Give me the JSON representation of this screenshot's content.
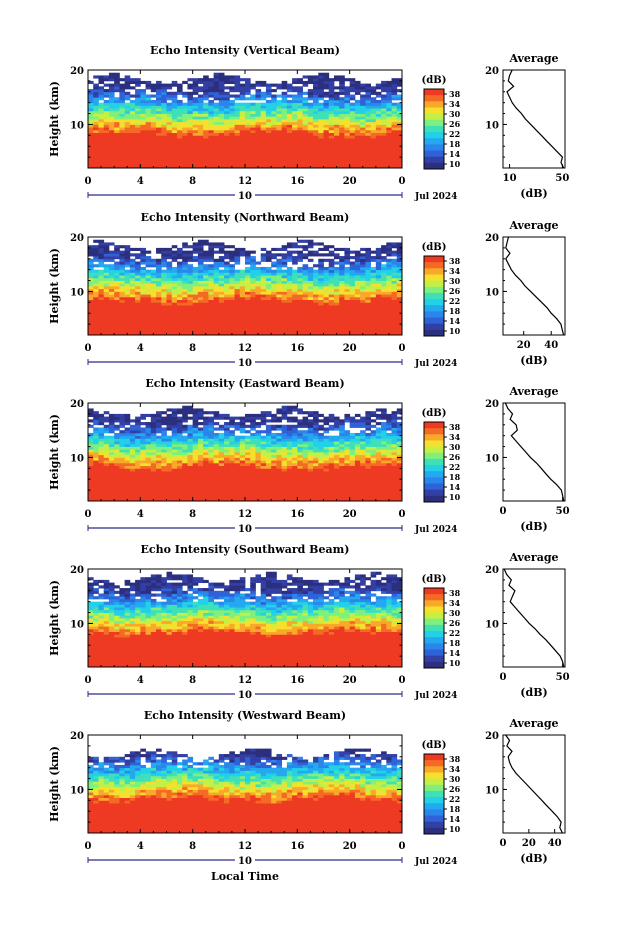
{
  "colors": {
    "cmap": [
      "#2b2f7e",
      "#323fa5",
      "#2f62d6",
      "#2a86ea",
      "#22a9f0",
      "#22d0e8",
      "#3fe0b8",
      "#7df07e",
      "#c4f046",
      "#f6e02e",
      "#f9a82a",
      "#f46a24",
      "#ee3a22"
    ],
    "rain": "#f0301f"
  },
  "chart_data": [
    {
      "type": "heatmap",
      "title": "Echo Intensity (Vertical Beam)",
      "ylabel": "Height (km)",
      "ylim": [
        2,
        20
      ],
      "yticks": [
        "20",
        "10"
      ],
      "xlim": [
        0,
        24
      ],
      "xticks": [
        "0",
        "4",
        "8",
        "12",
        "16",
        "20",
        "0"
      ],
      "date_mid": "10",
      "date_label": "Jul 2024",
      "colorbar": {
        "unit": "(dB)",
        "ticks": [
          "38",
          "34",
          "30",
          "26",
          "22",
          "18",
          "14",
          "10"
        ],
        "range": [
          10,
          38
        ]
      },
      "profile": {
        "title": "Average",
        "xlabel": "(dB)",
        "xticks": [
          "10",
          "50"
        ],
        "xlim": [
          5,
          52
        ],
        "points": [
          [
            12,
            20
          ],
          [
            10,
            19
          ],
          [
            9,
            18
          ],
          [
            13,
            17
          ],
          [
            8,
            16
          ],
          [
            10,
            15
          ],
          [
            12,
            14
          ],
          [
            15,
            13
          ],
          [
            19,
            12
          ],
          [
            22,
            11
          ],
          [
            26,
            10
          ],
          [
            30,
            9
          ],
          [
            34,
            8
          ],
          [
            38,
            7
          ],
          [
            42,
            6
          ],
          [
            46,
            5
          ],
          [
            50,
            4
          ],
          [
            49,
            3
          ],
          [
            51,
            2
          ]
        ]
      }
    },
    {
      "type": "heatmap",
      "title": "Echo Intensity (Northward Beam)",
      "ylabel": "Height (km)",
      "ylim": [
        2,
        20
      ],
      "yticks": [
        "20",
        "10"
      ],
      "xlim": [
        0,
        24
      ],
      "xticks": [
        "0",
        "4",
        "8",
        "12",
        "16",
        "20",
        "0"
      ],
      "date_mid": "10",
      "date_label": "Jul 2024",
      "colorbar": {
        "unit": "(dB)",
        "ticks": [
          "38",
          "34",
          "30",
          "26",
          "22",
          "18",
          "14",
          "10"
        ],
        "range": [
          10,
          38
        ]
      },
      "profile": {
        "title": "Average",
        "xlabel": "(dB)",
        "xticks": [
          "20",
          "40"
        ],
        "xlim": [
          5,
          50
        ],
        "points": [
          [
            9,
            20
          ],
          [
            8,
            19
          ],
          [
            7,
            18
          ],
          [
            10,
            17
          ],
          [
            7,
            16
          ],
          [
            9,
            15
          ],
          [
            11,
            14
          ],
          [
            14,
            13
          ],
          [
            18,
            12
          ],
          [
            21,
            11
          ],
          [
            25,
            10
          ],
          [
            29,
            9
          ],
          [
            33,
            8
          ],
          [
            37,
            7
          ],
          [
            40,
            6
          ],
          [
            44,
            5
          ],
          [
            47,
            4
          ],
          [
            48,
            3
          ],
          [
            49,
            2
          ]
        ]
      }
    },
    {
      "type": "heatmap",
      "title": "Echo Intensity (Eastward Beam)",
      "ylabel": "Height (km)",
      "ylim": [
        2,
        20
      ],
      "yticks": [
        "20",
        "10"
      ],
      "xlim": [
        0,
        24
      ],
      "xticks": [
        "0",
        "4",
        "8",
        "12",
        "16",
        "20",
        "0"
      ],
      "date_mid": "10",
      "date_label": "Jul 2024",
      "colorbar": {
        "unit": "(dB)",
        "ticks": [
          "38",
          "34",
          "30",
          "26",
          "22",
          "18",
          "14",
          "10"
        ],
        "range": [
          10,
          38
        ]
      },
      "profile": {
        "title": "Average",
        "xlabel": "(dB)",
        "xticks": [
          "0",
          "50"
        ],
        "xlim": [
          0,
          52
        ],
        "points": [
          [
            2,
            20
          ],
          [
            4,
            19
          ],
          [
            8,
            18
          ],
          [
            6,
            17
          ],
          [
            11,
            16
          ],
          [
            12,
            15
          ],
          [
            7,
            14
          ],
          [
            11,
            13
          ],
          [
            15,
            12
          ],
          [
            19,
            11
          ],
          [
            23,
            10
          ],
          [
            28,
            9
          ],
          [
            32,
            8
          ],
          [
            36,
            7
          ],
          [
            40,
            6
          ],
          [
            45,
            5
          ],
          [
            49,
            4
          ],
          [
            50,
            3
          ],
          [
            51,
            2
          ]
        ]
      }
    },
    {
      "type": "heatmap",
      "title": "Echo Intensity (Southward Beam)",
      "ylabel": "Height (km)",
      "ylim": [
        2,
        20
      ],
      "yticks": [
        "20",
        "10"
      ],
      "xlim": [
        0,
        24
      ],
      "xticks": [
        "0",
        "4",
        "8",
        "12",
        "16",
        "20",
        "0"
      ],
      "date_mid": "10",
      "date_label": "Jul 2024",
      "colorbar": {
        "unit": "(dB)",
        "ticks": [
          "38",
          "34",
          "30",
          "26",
          "22",
          "18",
          "14",
          "10"
        ],
        "range": [
          10,
          38
        ]
      },
      "profile": {
        "title": "Average",
        "xlabel": "(dB)",
        "xticks": [
          "0",
          "50"
        ],
        "xlim": [
          0,
          52
        ],
        "points": [
          [
            1,
            20
          ],
          [
            3,
            19
          ],
          [
            7,
            18
          ],
          [
            5,
            17
          ],
          [
            10,
            16
          ],
          [
            8,
            15
          ],
          [
            6,
            14
          ],
          [
            10,
            13
          ],
          [
            14,
            12
          ],
          [
            18,
            11
          ],
          [
            22,
            10
          ],
          [
            27,
            9
          ],
          [
            31,
            8
          ],
          [
            36,
            7
          ],
          [
            40,
            6
          ],
          [
            44,
            5
          ],
          [
            48,
            4
          ],
          [
            50,
            3
          ],
          [
            51,
            2
          ]
        ]
      }
    },
    {
      "type": "heatmap",
      "title": "Echo Intensity (Westward Beam)",
      "ylabel": "Height (km)",
      "ylim": [
        2,
        20
      ],
      "yticks": [
        "20",
        "10"
      ],
      "xlim": [
        0,
        24
      ],
      "xticks": [
        "0",
        "4",
        "8",
        "12",
        "16",
        "20",
        "0"
      ],
      "date_mid": "10",
      "date_label": "Jul 2024",
      "xlabel": "Local Time",
      "colorbar": {
        "unit": "(dB)",
        "ticks": [
          "38",
          "34",
          "30",
          "26",
          "22",
          "18",
          "14",
          "10"
        ],
        "range": [
          10,
          38
        ]
      },
      "profile": {
        "title": "Average",
        "xlabel": "(dB)",
        "xticks": [
          "0",
          "20",
          "40"
        ],
        "xlim": [
          0,
          48
        ],
        "points": [
          [
            2,
            20
          ],
          [
            5,
            19
          ],
          [
            3,
            18
          ],
          [
            7,
            17
          ],
          [
            4,
            16
          ],
          [
            5,
            15
          ],
          [
            7,
            14
          ],
          [
            10,
            13
          ],
          [
            14,
            12
          ],
          [
            18,
            11
          ],
          [
            22,
            10
          ],
          [
            26,
            9
          ],
          [
            30,
            8
          ],
          [
            34,
            7
          ],
          [
            38,
            6
          ],
          [
            42,
            5
          ],
          [
            45,
            4
          ],
          [
            44,
            3
          ],
          [
            46,
            2
          ]
        ]
      }
    }
  ]
}
